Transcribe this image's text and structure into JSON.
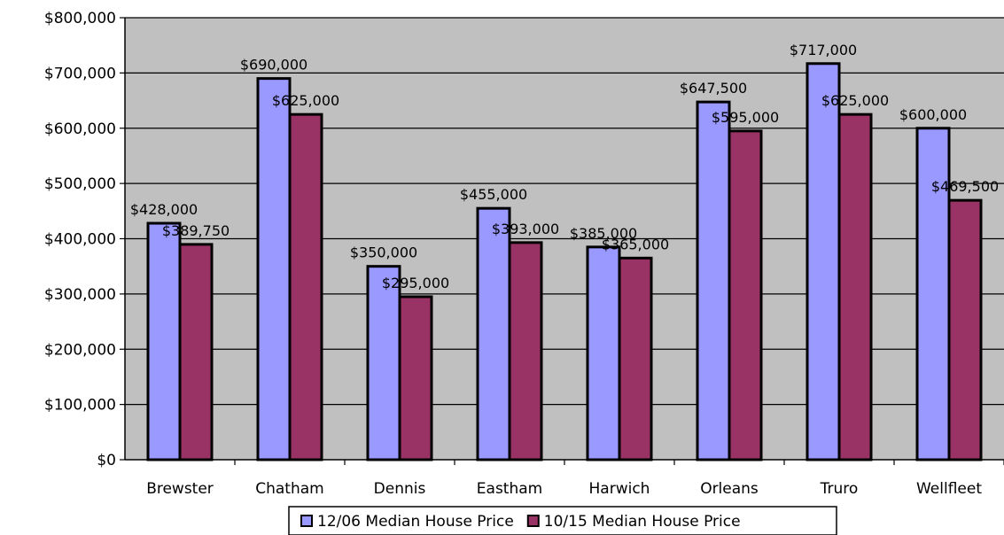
{
  "chart_data": {
    "type": "bar",
    "title": "",
    "xlabel": "",
    "ylabel": "",
    "categories": [
      "Brewster",
      "Chatham",
      "Dennis",
      "Eastham",
      "Harwich",
      "Orleans",
      "Truro",
      "Wellfleet"
    ],
    "series": [
      {
        "name": "12/06 Median House Price",
        "color": "#9999ff",
        "values": [
          428000,
          690000,
          350000,
          455000,
          385000,
          647500,
          717000,
          600000
        ],
        "labels": [
          "$428,000",
          "$690,000",
          "$350,000",
          "$455,000",
          "$385,000",
          "$647,500",
          "$717,000",
          "$600,000"
        ]
      },
      {
        "name": "10/15 Median House Price",
        "color": "#993366",
        "values": [
          389750,
          625000,
          295000,
          393000,
          365000,
          595000,
          625000,
          469500
        ],
        "labels": [
          "$389,750",
          "$625,000",
          "$295,000",
          "$393,000",
          "$365,000",
          "$595,000",
          "$625,000",
          "$469,500"
        ]
      }
    ],
    "ylim": [
      0,
      800000
    ],
    "yticks": [
      "$0",
      "$100,000",
      "$200,000",
      "$300,000",
      "$400,000",
      "$500,000",
      "$600,000",
      "$700,000",
      "$800,000"
    ],
    "grid": true,
    "plot_background": "#c0c0c0",
    "legend_position": "bottom"
  }
}
